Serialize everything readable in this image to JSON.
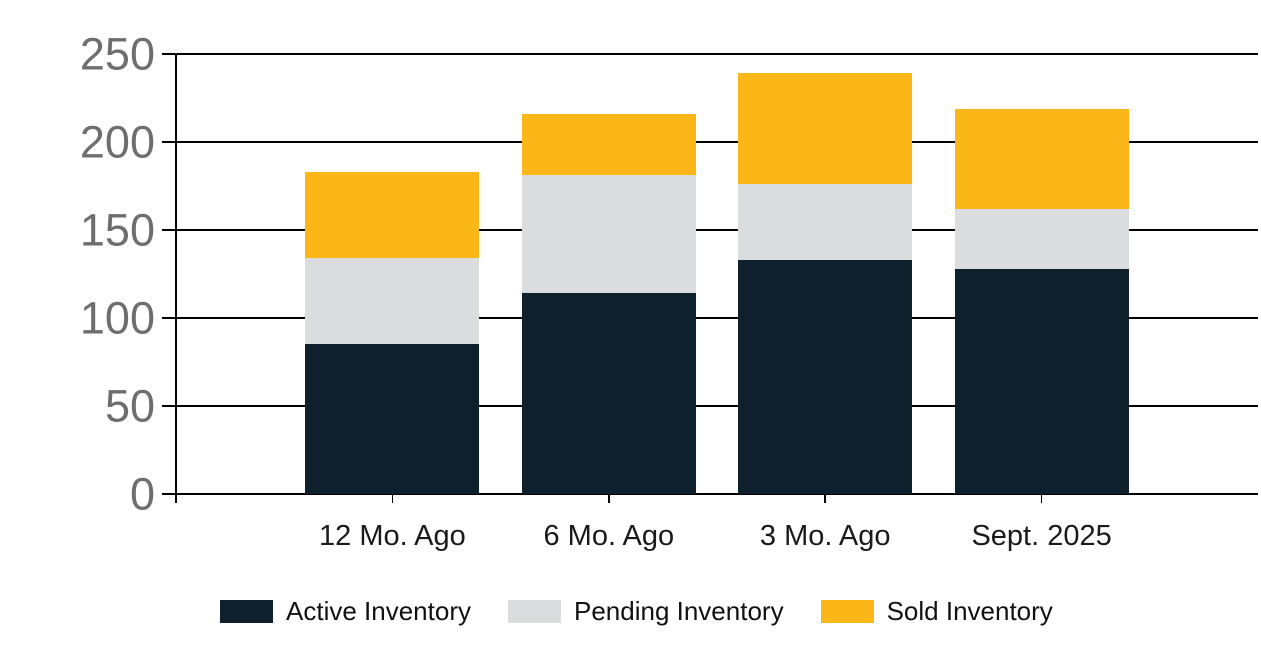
{
  "chart_data": {
    "type": "bar",
    "stacked": true,
    "title": "",
    "categories": [
      "12 Mo. Ago",
      "6 Mo. Ago",
      "3 Mo. Ago",
      "Sept. 2025"
    ],
    "series": [
      {
        "name": "Active Inventory",
        "color": "#0D202B",
        "values": [
          85,
          114,
          133,
          128
        ]
      },
      {
        "name": "Pending Inventory",
        "color": "#DBDCDD",
        "values": [
          49,
          67,
          43,
          34
        ]
      },
      {
        "name": "Sold Inventory",
        "color": "#FBB718",
        "values": [
          49,
          35,
          63,
          57
        ]
      }
    ],
    "stack_totals": [
      183,
      216,
      239,
      219
    ],
    "ylim": [
      0,
      250
    ],
    "yticks": [
      0,
      50,
      100,
      150,
      200,
      250
    ],
    "xlabel": "",
    "ylabel": "",
    "grid": true,
    "legend_position": "bottom",
    "colors": {
      "axis": "#000000",
      "gridline": "#000000",
      "y_tick_label": "#6E6E6E",
      "x_tick_label": "#1A1A1A",
      "legend_text": "#111111",
      "background": "#FFFFFF"
    }
  }
}
